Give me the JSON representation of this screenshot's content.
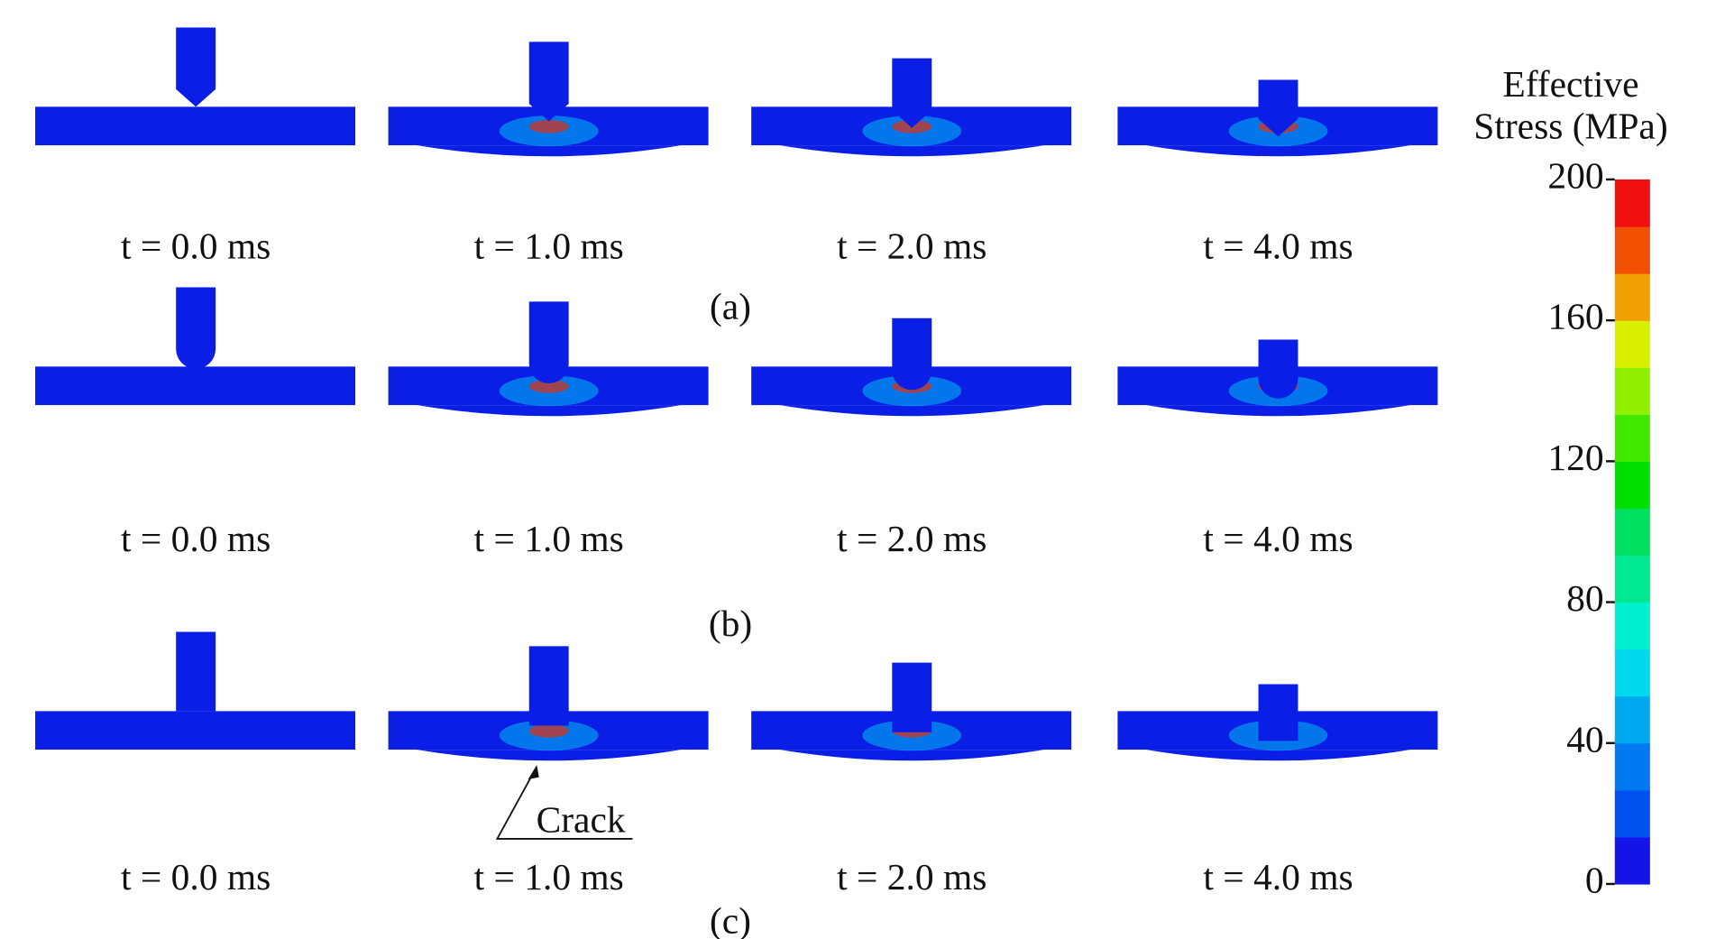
{
  "figure": {
    "rows": [
      {
        "label": "(a)",
        "times": [
          "t = 0.0 ms",
          "t = 1.0 ms",
          "t = 2.0 ms",
          "t = 4.0 ms"
        ]
      },
      {
        "label": "(b)",
        "times": [
          "t = 0.0 ms",
          "t = 1.0 ms",
          "t = 2.0 ms",
          "t = 4.0 ms"
        ]
      },
      {
        "label": "(c)",
        "times": [
          "t = 0.0 ms",
          "t = 1.0 ms",
          "t = 2.0 ms",
          "t = 4.0 ms"
        ],
        "annotation": "Crack"
      }
    ],
    "colorbar": {
      "title": [
        "Effective",
        "Stress (MPa)"
      ],
      "lim": [
        0,
        200
      ],
      "ticks": [
        0,
        40,
        80,
        120,
        160,
        200
      ],
      "colors": [
        "#1414e6",
        "#0050f0",
        "#0078f0",
        "#00a8f0",
        "#00d8f0",
        "#00f0d0",
        "#00e890",
        "#00e060",
        "#00e000",
        "#40e800",
        "#90f000",
        "#d8f000",
        "#f0a000",
        "#f05000",
        "#f01010"
      ]
    }
  }
}
